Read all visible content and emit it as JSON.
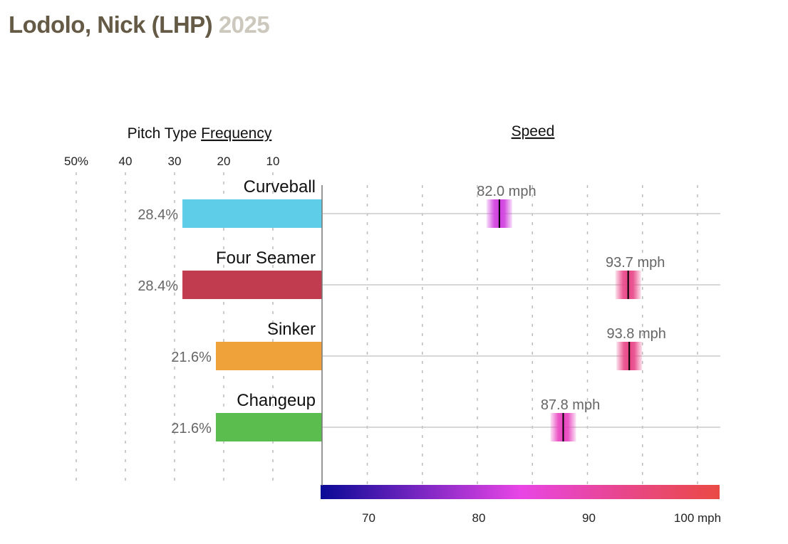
{
  "header": {
    "player": "Lodolo, Nick (LHP)",
    "year": "2025"
  },
  "chart_data": {
    "type": "bar",
    "frequency": {
      "title_prefix": "Pitch Type",
      "title_link": "Frequency",
      "ticks": [
        {
          "v": 50,
          "label": "50%"
        },
        {
          "v": 40,
          "label": "40"
        },
        {
          "v": 30,
          "label": "30"
        },
        {
          "v": 20,
          "label": "20"
        },
        {
          "v": 10,
          "label": "10"
        }
      ],
      "xlim": [
        0,
        50
      ]
    },
    "speed": {
      "title": "Speed",
      "ticks": [
        {
          "v": 70,
          "label": "70"
        },
        {
          "v": 80,
          "label": "80"
        },
        {
          "v": 90,
          "label": "90"
        },
        {
          "v": 100,
          "label": "100 mph"
        }
      ],
      "minor_ticks": [
        75,
        85,
        95
      ],
      "xlim": [
        65.9,
        102
      ],
      "colorscale": [
        "#0a0a96",
        "#7a26c2",
        "#e845e6",
        "#e8468e",
        "#ea4a44"
      ]
    },
    "pitches": [
      {
        "name": "Curveball",
        "frequency": 28.4,
        "frequency_label": "28.4%",
        "speed": 82.0,
        "speed_label": "82.0 mph",
        "color": "#5ecde8"
      },
      {
        "name": "Four Seamer",
        "frequency": 28.4,
        "frequency_label": "28.4%",
        "speed": 93.7,
        "speed_label": "93.7 mph",
        "color": "#c23c4f"
      },
      {
        "name": "Sinker",
        "frequency": 21.6,
        "frequency_label": "21.6%",
        "speed": 93.8,
        "speed_label": "93.8 mph",
        "color": "#f0a23a"
      },
      {
        "name": "Changeup",
        "frequency": 21.6,
        "frequency_label": "21.6%",
        "speed": 87.8,
        "speed_label": "87.8 mph",
        "color": "#5abd4e"
      }
    ]
  }
}
